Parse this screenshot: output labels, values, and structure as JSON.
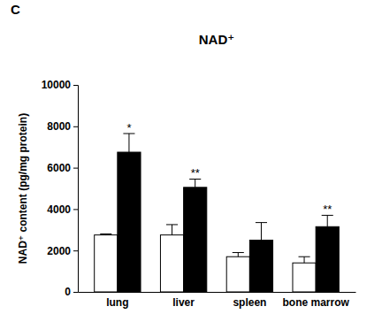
{
  "chart_data": {
    "type": "bar",
    "panel_label": "C",
    "title": "NAD⁺",
    "y_label": "NAD⁺ content (pg/mg protein)",
    "categories": [
      "lung",
      "liver",
      "spleen",
      "bone marrow"
    ],
    "series": [
      {
        "color": "#ffffff",
        "values": [
          2750,
          2750,
          1700,
          1400
        ],
        "errors": [
          50,
          500,
          200,
          300
        ]
      },
      {
        "color": "#000000",
        "values": [
          6750,
          5050,
          2500,
          3150
        ],
        "errors": [
          900,
          400,
          850,
          550
        ],
        "annotations": [
          "*",
          "**",
          null,
          "**"
        ]
      }
    ],
    "ylim": [
      0,
      10000
    ],
    "yticks": [
      0,
      2000,
      4000,
      6000,
      8000,
      10000
    ],
    "grid": false
  }
}
